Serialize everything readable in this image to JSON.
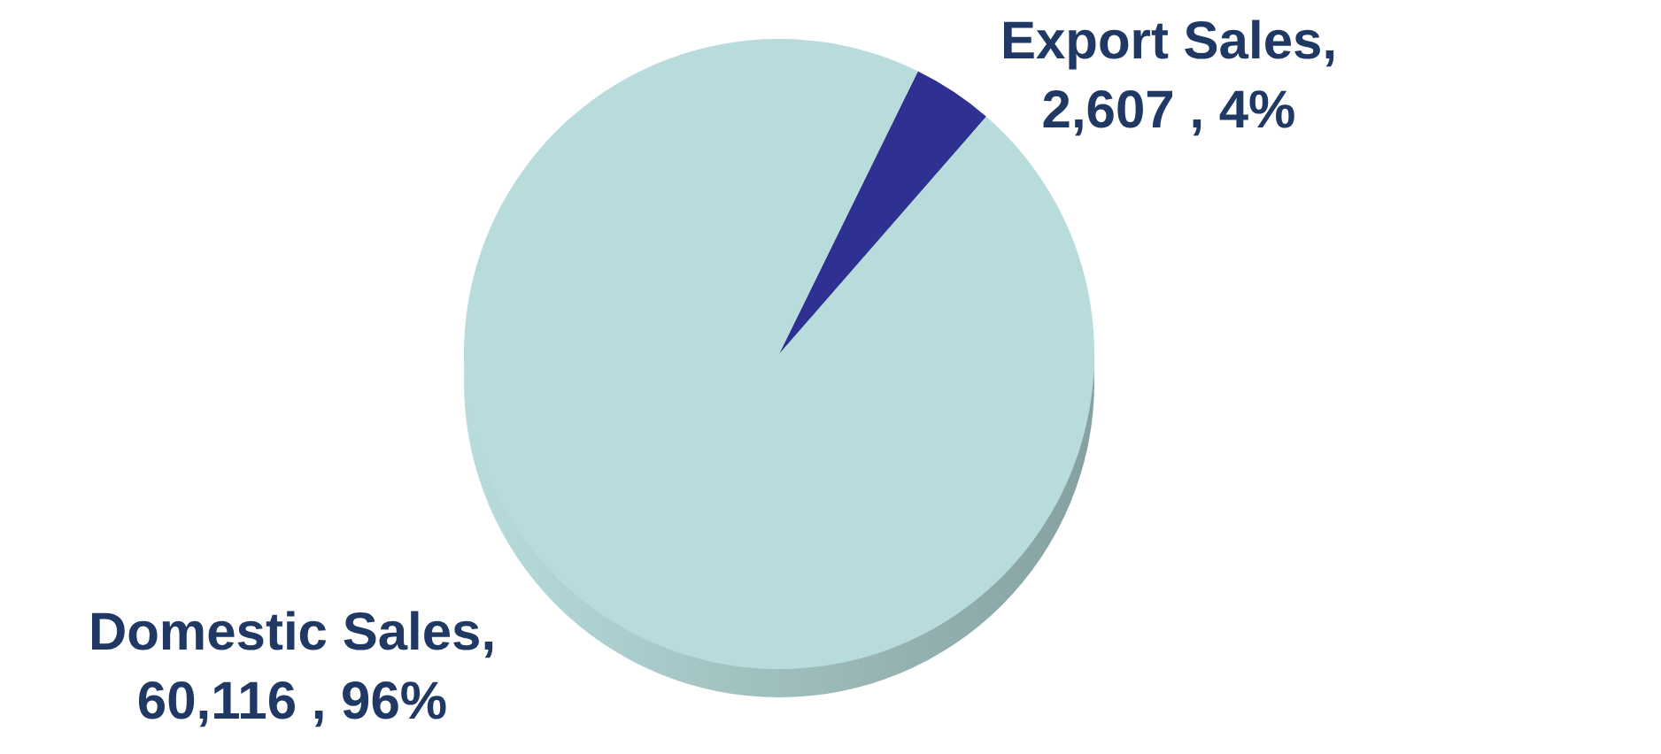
{
  "chart_data": {
    "type": "pie",
    "categories": [
      "Export Sales",
      "Domestic Sales"
    ],
    "values": [
      2607,
      60116
    ],
    "colors": [
      "#2e3192",
      "#b8dcdc"
    ],
    "value_labels": [
      ", 2,607 , 4%",
      ", 60,116 , 96%"
    ]
  }
}
